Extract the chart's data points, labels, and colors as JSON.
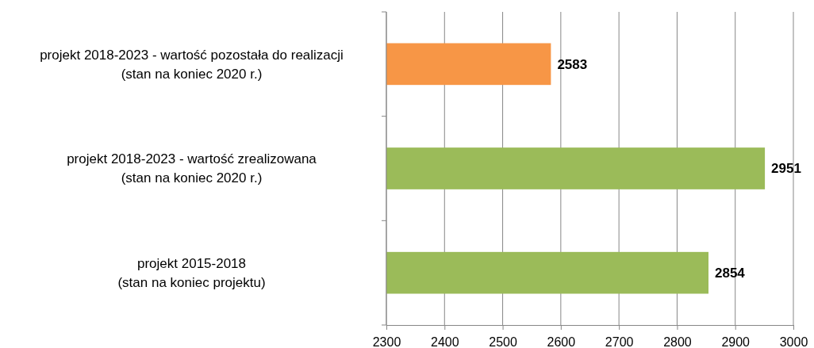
{
  "chart_data": {
    "type": "bar",
    "orientation": "horizontal",
    "categories": [
      "projekt 2018-2023 - wartość pozostała do realizacji\n(stan na koniec 2020 r.)",
      "projekt 2018-2023 - wartość zrealizowana\n(stan na koniec 2020 r.)",
      "projekt 2015-2018\n(stan na koniec projektu)"
    ],
    "values": [
      2583,
      2951,
      2854
    ],
    "colors": [
      "#f79646",
      "#9bbb59",
      "#9bbb59"
    ],
    "xlim": [
      2300,
      3000
    ],
    "xticks": [
      2300,
      2400,
      2500,
      2600,
      2700,
      2800,
      2900,
      3000
    ],
    "grid": "x",
    "data_labels": true
  }
}
